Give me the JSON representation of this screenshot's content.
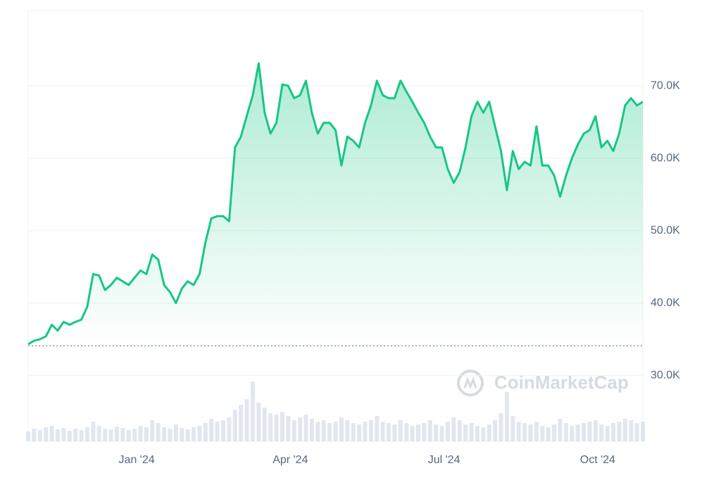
{
  "chart_data": {
    "type": "line",
    "watermark": "CoinMarketCap",
    "categories": [
      null,
      null,
      null,
      null,
      null,
      null,
      null,
      null,
      null,
      null,
      null,
      null,
      null,
      null,
      null,
      null,
      null,
      null,
      "Jan '24",
      null,
      null,
      null,
      null,
      null,
      null,
      null,
      null,
      null,
      null,
      null,
      null,
      null,
      null,
      null,
      null,
      null,
      null,
      null,
      null,
      null,
      null,
      null,
      null,
      null,
      "Apr '24",
      null,
      null,
      null,
      null,
      null,
      null,
      null,
      null,
      null,
      null,
      null,
      null,
      null,
      null,
      null,
      null,
      null,
      null,
      null,
      null,
      null,
      null,
      null,
      null,
      null,
      "Jul '24",
      null,
      null,
      null,
      null,
      null,
      null,
      null,
      null,
      null,
      null,
      null,
      null,
      null,
      null,
      null,
      null,
      null,
      null,
      null,
      null,
      null,
      null,
      null,
      null,
      null,
      "Oct '24",
      null,
      null,
      null,
      null,
      null,
      null,
      null,
      null
    ],
    "values": [
      34300,
      34800,
      35000,
      35400,
      37000,
      36200,
      37400,
      37000,
      37400,
      37700,
      39500,
      44000,
      43800,
      41800,
      42500,
      43500,
      43000,
      42500,
      43500,
      44500,
      44000,
      46700,
      46000,
      42500,
      41500,
      40000,
      42000,
      43000,
      42500,
      44000,
      48400,
      51700,
      52000,
      52000,
      51300,
      61500,
      63000,
      65900,
      68700,
      73100,
      66300,
      63400,
      64900,
      70200,
      70000,
      68300,
      68700,
      70700,
      66300,
      63400,
      64900,
      64900,
      63900,
      59000,
      63000,
      62400,
      61500,
      64900,
      67300,
      70700,
      68700,
      68300,
      68300,
      70700,
      69200,
      67800,
      66300,
      64900,
      63000,
      61500,
      61500,
      58500,
      56600,
      58100,
      61500,
      65800,
      67800,
      66300,
      67800,
      64400,
      61000,
      55600,
      61000,
      58500,
      59500,
      59000,
      64400,
      59000,
      59000,
      57600,
      54700,
      57600,
      60000,
      61900,
      63400,
      63900,
      65800,
      61500,
      62400,
      61000,
      63400,
      67300,
      68300,
      67300,
      67800
    ],
    "volume": [
      14,
      18,
      16,
      20,
      22,
      17,
      19,
      15,
      18,
      16,
      20,
      28,
      22,
      18,
      17,
      21,
      19,
      16,
      18,
      22,
      20,
      30,
      26,
      20,
      18,
      24,
      19,
      17,
      20,
      22,
      26,
      32,
      28,
      30,
      34,
      45,
      52,
      60,
      85,
      55,
      48,
      40,
      38,
      42,
      36,
      30,
      34,
      38,
      32,
      28,
      30,
      26,
      28,
      34,
      30,
      26,
      24,
      28,
      30,
      36,
      28,
      26,
      24,
      30,
      26,
      22,
      24,
      26,
      30,
      24,
      22,
      28,
      34,
      30,
      24,
      26,
      22,
      20,
      24,
      30,
      40,
      70,
      36,
      28,
      26,
      24,
      28,
      22,
      20,
      24,
      32,
      26,
      22,
      24,
      26,
      28,
      30,
      24,
      22,
      26,
      28,
      32,
      30,
      26,
      28
    ],
    "color": "#16c784",
    "volume_color": "#cfd6e4",
    "reference_line": 34100,
    "ylim": [
      20900,
      80400
    ],
    "yticks": [
      {
        "value": 30000,
        "label": "30.0K"
      },
      {
        "value": 40000,
        "label": "40.0K"
      },
      {
        "value": 50000,
        "label": "50.0K"
      },
      {
        "value": 60000,
        "label": "60.0K"
      },
      {
        "value": 70000,
        "label": "70.0K"
      }
    ],
    "grid": true
  }
}
